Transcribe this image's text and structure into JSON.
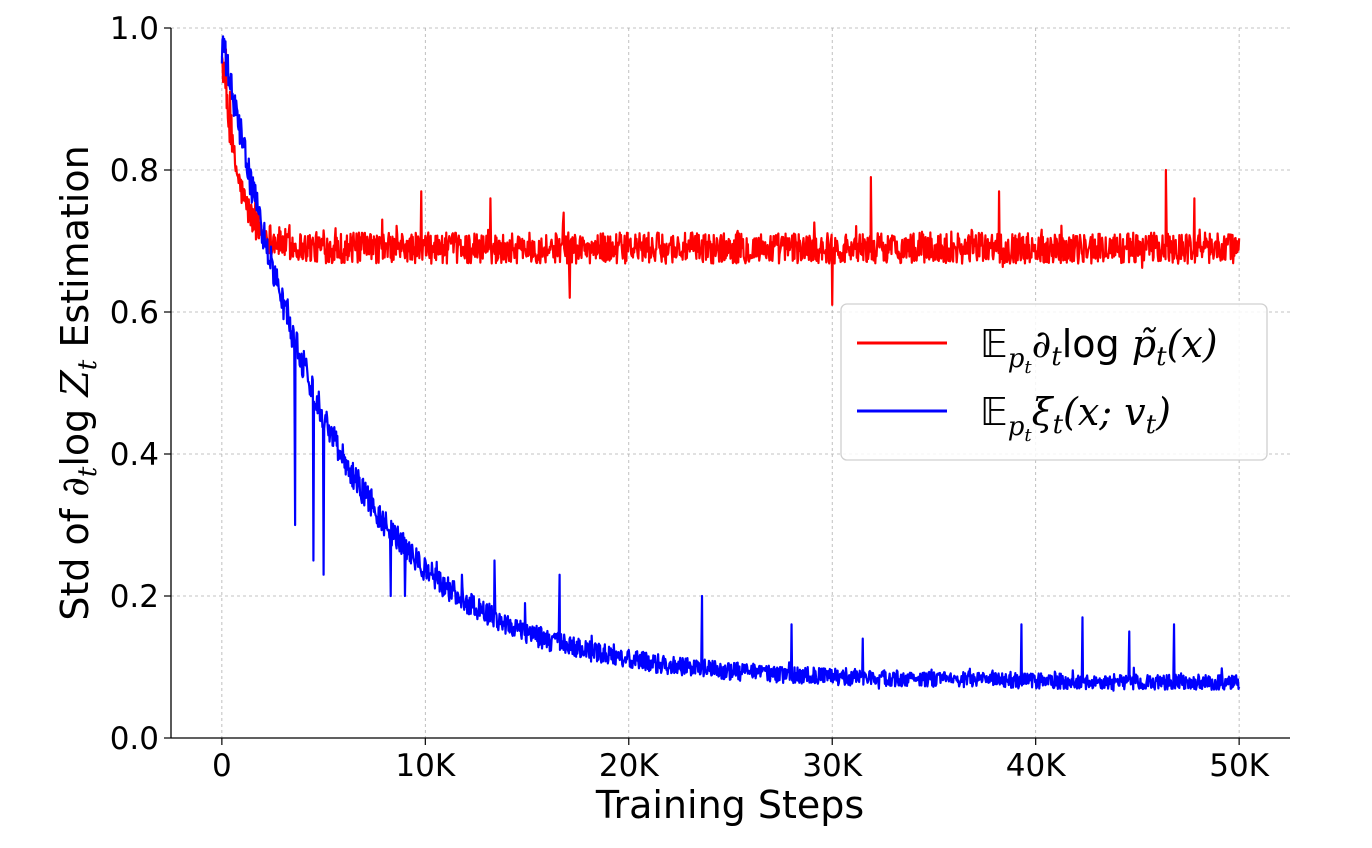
{
  "chart_data": {
    "type": "line",
    "xlabel": "Training Steps",
    "ylabel": {
      "prefix": "Std of ",
      "symbol": "∂",
      "sub": "t",
      "log": "log ",
      "Z": "Z",
      "Zsub": "t",
      "suffix": " Estimation"
    },
    "xlim": [
      -2500,
      52500
    ],
    "ylim": [
      0.0,
      1.0
    ],
    "x_ticks": [
      0,
      10000,
      20000,
      30000,
      40000,
      50000
    ],
    "x_tick_labels": [
      "0",
      "10K",
      "20K",
      "30K",
      "40K",
      "50K"
    ],
    "y_ticks": [
      0.0,
      0.2,
      0.4,
      0.6,
      0.8,
      1.0
    ],
    "y_tick_labels": [
      "0.0",
      "0.2",
      "0.4",
      "0.6",
      "0.8",
      "1.0"
    ],
    "grid": true,
    "legend_position": "center-right",
    "series": [
      {
        "name": "𝔼ₚₜ∂ₜlog p̃ₜ(x)",
        "color": "#ff0000",
        "x_range": [
          0,
          50000
        ],
        "start": 0.96,
        "plateau": 0.69,
        "decay_steps": 800,
        "noise": 0.022,
        "spikes": [
          {
            "x": 200,
            "y": 0.97
          },
          {
            "x": 400,
            "y": 0.91
          },
          {
            "x": 9800,
            "y": 0.77
          },
          {
            "x": 13200,
            "y": 0.76
          },
          {
            "x": 16800,
            "y": 0.74
          },
          {
            "x": 30000,
            "y": 0.61
          },
          {
            "x": 31900,
            "y": 0.79
          },
          {
            "x": 38200,
            "y": 0.77
          },
          {
            "x": 46400,
            "y": 0.8
          },
          {
            "x": 47800,
            "y": 0.76
          },
          {
            "x": 17100,
            "y": 0.62
          }
        ]
      },
      {
        "name": "𝔼ₚₜξₜ(x; vₜ)",
        "color": "#0000ff",
        "x_range": [
          0,
          50000
        ],
        "start": 0.95,
        "plateau": 0.075,
        "decay_steps": 5500,
        "noise": 0.01,
        "spikes": [
          {
            "x": 3600,
            "y": 0.3
          },
          {
            "x": 4500,
            "y": 0.25
          },
          {
            "x": 5000,
            "y": 0.23
          },
          {
            "x": 8300,
            "y": 0.2
          },
          {
            "x": 9000,
            "y": 0.2
          },
          {
            "x": 10300,
            "y": 0.23
          },
          {
            "x": 11800,
            "y": 0.23
          },
          {
            "x": 13400,
            "y": 0.25
          },
          {
            "x": 14900,
            "y": 0.19
          },
          {
            "x": 16600,
            "y": 0.23
          },
          {
            "x": 23600,
            "y": 0.2
          },
          {
            "x": 28000,
            "y": 0.16
          },
          {
            "x": 31500,
            "y": 0.14
          },
          {
            "x": 39300,
            "y": 0.16
          },
          {
            "x": 42300,
            "y": 0.17
          },
          {
            "x": 44600,
            "y": 0.15
          },
          {
            "x": 46800,
            "y": 0.16
          }
        ]
      }
    ]
  },
  "legend": {
    "items": [
      {
        "key": "red",
        "color": "#ff0000",
        "E": "𝔼",
        "p": "p",
        "t1": "t",
        "rest": "∂",
        "t2": "t",
        "log": "log ",
        "ptilde": "p̃",
        "t3": "t",
        "arg": "(x)"
      },
      {
        "key": "blue",
        "color": "#0000ff",
        "E": "𝔼",
        "p": "p",
        "t1": "t",
        "rest": "ξ",
        "t2": "t",
        "arg": "(x; v",
        "t3": "t",
        "close": ")"
      }
    ]
  }
}
